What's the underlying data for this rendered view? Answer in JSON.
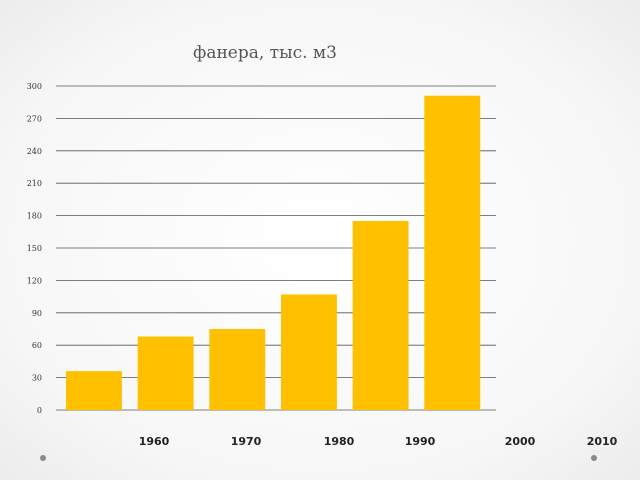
{
  "chart_data": {
    "type": "bar",
    "title": "фанера, тыс. м3",
    "xlabel": "",
    "ylabel": "",
    "values": [
      36,
      68,
      75,
      107,
      175,
      291
    ],
    "ylim": [
      0,
      300
    ],
    "yticks": [
      "0",
      "30",
      "60",
      "90",
      "120",
      "150",
      "180",
      "210",
      "240",
      "270",
      "300"
    ],
    "xtick_labels": [
      "1960",
      "1970",
      "1980",
      "1990",
      "2000",
      "2010"
    ],
    "grid": true,
    "bar_color": "#FFC000"
  }
}
